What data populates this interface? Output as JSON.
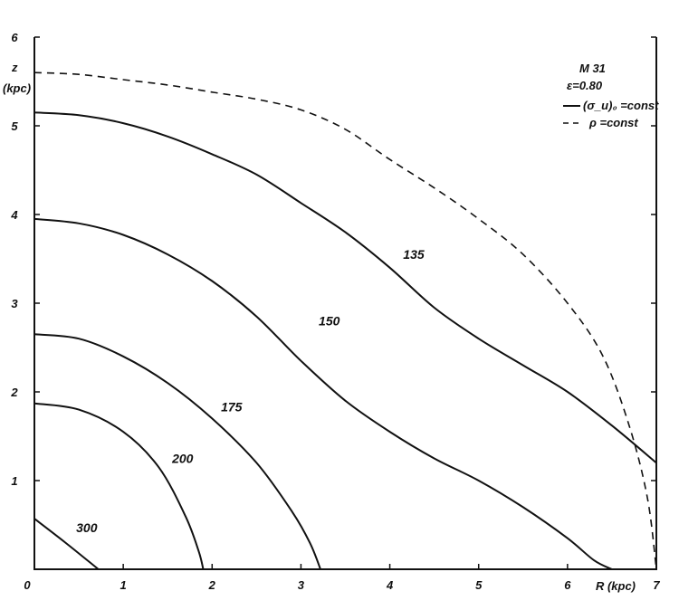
{
  "chart_data": {
    "type": "line",
    "title": "M 31",
    "subtitle": "ε=0.80",
    "xlabel": "R (kpc)",
    "ylabel_top": "z",
    "ylabel_unit": "(kpc)",
    "xlim": [
      0,
      7
    ],
    "ylim": [
      0,
      6
    ],
    "x_ticks": [
      "0",
      "1",
      "2",
      "3",
      "4",
      "5",
      "6",
      "7"
    ],
    "y_ticks": [
      "1",
      "2",
      "3",
      "4",
      "5",
      "6"
    ],
    "grid": false,
    "legend": {
      "placement": "top-right",
      "solid": "(σ_u)₀ =const",
      "dashed": "ρ  =const"
    },
    "series": [
      {
        "label": "300",
        "style": "solid",
        "x": [
          0,
          0.35,
          0.72
        ],
        "y": [
          0.57,
          0.3,
          0.0
        ]
      },
      {
        "label": "200",
        "style": "solid",
        "x": [
          0,
          0.5,
          1.0,
          1.4,
          1.7,
          1.85,
          1.9
        ],
        "y": [
          1.87,
          1.8,
          1.55,
          1.15,
          0.6,
          0.2,
          0.0
        ]
      },
      {
        "label": "175",
        "style": "solid",
        "x": [
          0,
          0.5,
          1.0,
          1.5,
          2.0,
          2.5,
          2.9,
          3.1,
          3.22
        ],
        "y": [
          2.65,
          2.6,
          2.4,
          2.1,
          1.7,
          1.2,
          0.65,
          0.3,
          0.0
        ]
      },
      {
        "label": "150",
        "style": "solid",
        "x": [
          0,
          0.5,
          1.0,
          1.5,
          2.0,
          2.5,
          3.0,
          3.5,
          4.0,
          4.5,
          5.0,
          5.5,
          6.0,
          6.3,
          6.5
        ],
        "y": [
          3.95,
          3.9,
          3.77,
          3.55,
          3.25,
          2.85,
          2.35,
          1.9,
          1.55,
          1.25,
          1.0,
          0.7,
          0.35,
          0.1,
          0.0
        ]
      },
      {
        "label": "135",
        "style": "solid",
        "x": [
          0,
          0.5,
          1.0,
          1.5,
          2.0,
          2.5,
          3.0,
          3.5,
          4.0,
          4.5,
          5.0,
          5.5,
          6.0,
          6.5,
          7.0
        ],
        "y": [
          5.15,
          5.12,
          5.03,
          4.88,
          4.68,
          4.45,
          4.13,
          3.8,
          3.4,
          2.95,
          2.6,
          2.3,
          2.0,
          1.62,
          1.2
        ]
      },
      {
        "label": "",
        "style": "dashed",
        "x": [
          0,
          0.5,
          1.0,
          1.5,
          2.0,
          2.5,
          3.0,
          3.5,
          4.0,
          4.5,
          5.0,
          5.5,
          6.0,
          6.4,
          6.7,
          6.9,
          7.0
        ],
        "y": [
          5.6,
          5.58,
          5.52,
          5.46,
          5.38,
          5.3,
          5.18,
          4.96,
          4.62,
          4.3,
          3.95,
          3.55,
          3.0,
          2.4,
          1.6,
          0.8,
          0.0
        ]
      }
    ]
  }
}
